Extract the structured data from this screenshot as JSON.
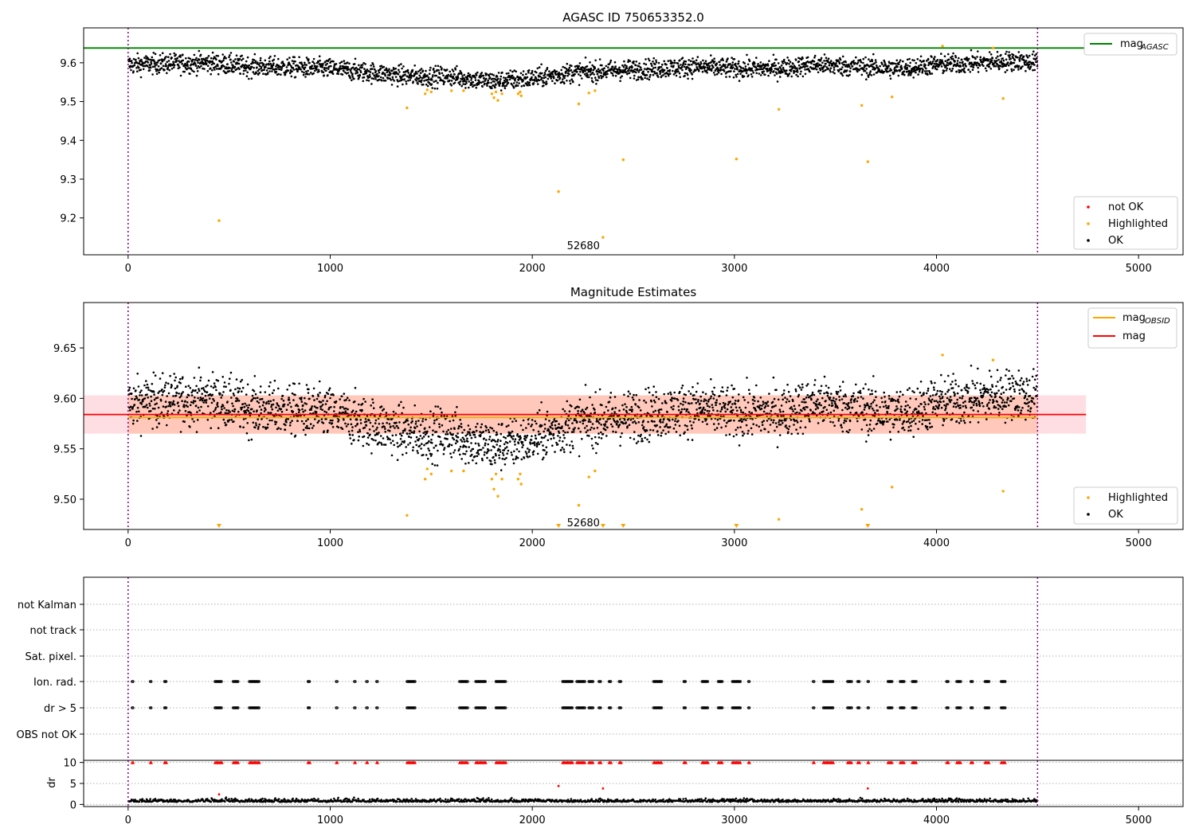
{
  "chart_data": [
    {
      "id": "panel1",
      "type": "scatter",
      "title": "AGASC ID 750653352.0",
      "xlabel": "",
      "ylabel": "",
      "xlim": [
        -220,
        5220
      ],
      "ylim": [
        9.105,
        9.69
      ],
      "xticks": [
        0,
        1000,
        2000,
        3000,
        4000,
        5000
      ],
      "yticks": [
        9.2,
        9.3,
        9.4,
        9.5,
        9.6
      ],
      "vlines": [
        0,
        4500
      ],
      "hline": {
        "y": 9.638,
        "x_range": [
          -220,
          4740
        ],
        "color": "#008000"
      },
      "annotation": {
        "text": "52680",
        "x": 2250,
        "y": 9.13
      },
      "trend": [
        [
          0,
          9.595
        ],
        [
          200,
          9.598
        ],
        [
          400,
          9.6
        ],
        [
          600,
          9.59
        ],
        [
          800,
          9.588
        ],
        [
          1000,
          9.585
        ],
        [
          1200,
          9.575
        ],
        [
          1400,
          9.565
        ],
        [
          1600,
          9.565
        ],
        [
          1800,
          9.552
        ],
        [
          2000,
          9.56
        ],
        [
          2200,
          9.575
        ],
        [
          2400,
          9.58
        ],
        [
          2600,
          9.585
        ],
        [
          2800,
          9.59
        ],
        [
          3000,
          9.585
        ],
        [
          3200,
          9.585
        ],
        [
          3400,
          9.595
        ],
        [
          3600,
          9.59
        ],
        [
          3800,
          9.585
        ],
        [
          4000,
          9.595
        ],
        [
          4200,
          9.6
        ],
        [
          4400,
          9.605
        ],
        [
          4500,
          9.6
        ]
      ],
      "ok_spread": 0.028,
      "highlighted": [
        [
          450,
          9.193
        ],
        [
          1380,
          9.484
        ],
        [
          1470,
          9.52
        ],
        [
          1480,
          9.53
        ],
        [
          1500,
          9.525
        ],
        [
          1600,
          9.528
        ],
        [
          1660,
          9.528
        ],
        [
          1800,
          9.52
        ],
        [
          1810,
          9.51
        ],
        [
          1820,
          9.525
        ],
        [
          1830,
          9.503
        ],
        [
          1850,
          9.52
        ],
        [
          1930,
          9.52
        ],
        [
          1940,
          9.525
        ],
        [
          1945,
          9.515
        ],
        [
          2130,
          9.268
        ],
        [
          2230,
          9.494
        ],
        [
          2280,
          9.522
        ],
        [
          2310,
          9.528
        ],
        [
          2350,
          9.15
        ],
        [
          2450,
          9.35
        ],
        [
          3010,
          9.352
        ],
        [
          3220,
          9.48
        ],
        [
          3630,
          9.49
        ],
        [
          3660,
          9.345
        ],
        [
          3780,
          9.512
        ],
        [
          4330,
          9.508
        ],
        [
          4030,
          9.643
        ],
        [
          4280,
          9.638
        ]
      ],
      "legend_line": [
        {
          "label": "mag",
          "subscript": "AGASC",
          "color": "#008000"
        }
      ],
      "legend_scatter": [
        {
          "label": "not OK",
          "color": "#ff0000"
        },
        {
          "label": "Highlighted",
          "color": "#ffa500"
        },
        {
          "label": "OK",
          "color": "#000000"
        }
      ]
    },
    {
      "id": "panel2",
      "type": "scatter",
      "title": "Magnitude Estimates",
      "xlabel": "",
      "ylabel": "",
      "xlim": [
        -220,
        5220
      ],
      "ylim": [
        9.47,
        9.695
      ],
      "xticks": [
        0,
        1000,
        2000,
        3000,
        4000,
        5000
      ],
      "yticks": [
        9.5,
        9.55,
        9.6,
        9.65
      ],
      "vlines": [
        0,
        4500
      ],
      "mean": 9.584,
      "mean_color": "#ff0000",
      "band": [
        9.565,
        9.603
      ],
      "band_x_range": [
        -220,
        4740
      ],
      "obsid_mag": {
        "y": 9.581,
        "x_range": [
          0,
          4500
        ],
        "color": "#ffa500"
      },
      "annotation": {
        "text": "52680",
        "x": 2250,
        "y": 9.477
      },
      "clipped_markers": [
        450,
        2130,
        2350,
        2450,
        3010,
        3660
      ],
      "legend_line": [
        {
          "label": "mag",
          "subscript": "OBSID",
          "color": "#ffa500"
        },
        {
          "label": "mag",
          "subscript": "",
          "color": "#ff0000"
        }
      ],
      "legend_scatter": [
        {
          "label": "Highlighted",
          "color": "#ffa500"
        },
        {
          "label": "OK",
          "color": "#000000"
        }
      ]
    },
    {
      "id": "panel3",
      "type": "scatter",
      "title": "",
      "xlim": [
        -220,
        5220
      ],
      "flag_labels": [
        "not Kalman",
        "not track",
        "Sat. pixel.",
        "Ion. rad.",
        "dr > 5",
        "OBS not OK"
      ],
      "flag_clusters": [
        [
          20,
          25
        ],
        [
          110,
          115
        ],
        [
          180,
          190
        ],
        [
          430,
          465
        ],
        [
          520,
          545
        ],
        [
          600,
          650
        ],
        [
          890,
          900
        ],
        [
          1030,
          1035
        ],
        [
          1120,
          1125
        ],
        [
          1180,
          1185
        ],
        [
          1230,
          1235
        ],
        [
          1380,
          1420
        ],
        [
          1640,
          1680
        ],
        [
          1720,
          1770
        ],
        [
          1820,
          1870
        ],
        [
          2150,
          2200
        ],
        [
          2220,
          2260
        ],
        [
          2280,
          2300
        ],
        [
          2330,
          2340
        ],
        [
          2380,
          2390
        ],
        [
          2430,
          2440
        ],
        [
          2600,
          2640
        ],
        [
          2750,
          2760
        ],
        [
          2840,
          2870
        ],
        [
          2920,
          2940
        ],
        [
          2990,
          3030
        ],
        [
          3070,
          3075
        ],
        [
          3390,
          3395
        ],
        [
          3440,
          3490
        ],
        [
          3560,
          3580
        ],
        [
          3610,
          3620
        ],
        [
          3660,
          3665
        ],
        [
          3760,
          3780
        ],
        [
          3820,
          3840
        ],
        [
          3880,
          3900
        ],
        [
          4050,
          4060
        ],
        [
          4100,
          4120
        ],
        [
          4170,
          4180
        ],
        [
          4240,
          4260
        ],
        [
          4320,
          4340
        ]
      ]
    },
    {
      "id": "panel4",
      "type": "scatter",
      "title": "",
      "xlabel": "",
      "ylabel": "dr",
      "xlim": [
        -220,
        5220
      ],
      "ylim": [
        -0.5,
        10.5
      ],
      "xticks": [
        0,
        1000,
        2000,
        3000,
        4000,
        5000
      ],
      "yticks": [
        0,
        5,
        10
      ],
      "vlines": [
        0,
        4500
      ],
      "clip_value": 10,
      "outliers": [
        [
          2130,
          4.4
        ],
        [
          2350,
          3.8
        ],
        [
          3660,
          3.8
        ],
        [
          450,
          2.4
        ]
      ]
    }
  ]
}
